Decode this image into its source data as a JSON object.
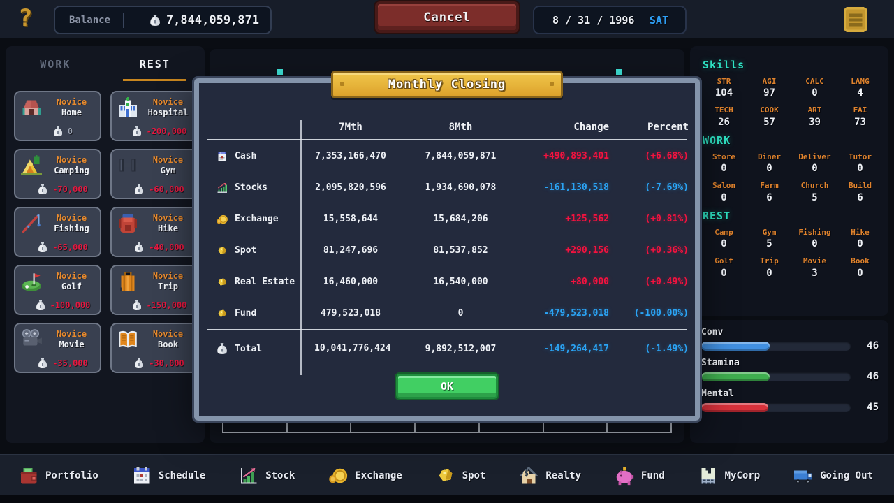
{
  "colors": {
    "gain_red": "#f5123f",
    "loss_blue": "#2ba4f5",
    "gold_accent": "#d9a73a",
    "cyan_heading": "#2fe3c4",
    "orange_label": "#e0832d",
    "price_red": "#e8173f",
    "weekday_blue": "#2f9ff5"
  },
  "top_bar": {
    "help_icon": "question-mark",
    "balance_label": "Balance",
    "balance_value": "7,844,059,871",
    "cancel_label": "Cancel",
    "date": "8 / 31 / 1996",
    "weekday": "SAT",
    "menu_icon": "menu"
  },
  "left_panel": {
    "tabs": [
      {
        "label": "WORK",
        "active": false
      },
      {
        "label": "REST",
        "active": true
      }
    ],
    "cards": [
      {
        "tier": "Novice",
        "name": "Home",
        "price": "0",
        "icon": "home",
        "muted": true
      },
      {
        "tier": "Novice",
        "name": "Hospital",
        "price": "-200,000",
        "icon": "hospital"
      },
      {
        "tier": "Novice",
        "name": "Camping",
        "price": "-70,000",
        "icon": "camping"
      },
      {
        "tier": "Novice",
        "name": "Gym",
        "price": "-60,000",
        "icon": "gym"
      },
      {
        "tier": "Novice",
        "name": "Fishing",
        "price": "-65,000",
        "icon": "fishing"
      },
      {
        "tier": "Novice",
        "name": "Hike",
        "price": "-40,000",
        "icon": "hike"
      },
      {
        "tier": "Novice",
        "name": "Golf",
        "price": "-100,000",
        "icon": "golf"
      },
      {
        "tier": "Novice",
        "name": "Trip",
        "price": "-150,000",
        "icon": "trip"
      },
      {
        "tier": "Novice",
        "name": "Movie",
        "price": "-35,000",
        "icon": "movie"
      },
      {
        "tier": "Novice",
        "name": "Book",
        "price": "-30,000",
        "icon": "book"
      }
    ]
  },
  "modal": {
    "title": "Monthly Closing",
    "columns": [
      "7Mth",
      "8Mth",
      "Change",
      "Percent"
    ],
    "rows": [
      {
        "icon": "cash",
        "label": "Cash",
        "m7": "7,353,166,470",
        "m8": "7,844,059,871",
        "change": "+490,893,401",
        "percent": "(+6.68%)",
        "dir": "up"
      },
      {
        "icon": "stocks",
        "label": "Stocks",
        "m7": "2,095,820,596",
        "m8": "1,934,690,078",
        "change": "-161,130,518",
        "percent": "(-7.69%)",
        "dir": "down"
      },
      {
        "icon": "coin",
        "label": "Exchange",
        "m7": "15,558,644",
        "m8": "15,684,206",
        "change": "+125,562",
        "percent": "(+0.81%)",
        "dir": "up"
      },
      {
        "icon": "nugget",
        "label": "Spot",
        "m7": "81,247,696",
        "m8": "81,537,852",
        "change": "+290,156",
        "percent": "(+0.36%)",
        "dir": "up"
      },
      {
        "icon": "nugget",
        "label": "Real Estate",
        "m7": "16,460,000",
        "m8": "16,540,000",
        "change": "+80,000",
        "percent": "(+0.49%)",
        "dir": "up"
      },
      {
        "icon": "nugget",
        "label": "Fund",
        "m7": "479,523,018",
        "m8": "0",
        "change": "-479,523,018",
        "percent": "(-100.00%)",
        "dir": "down"
      }
    ],
    "total": {
      "icon": "moneybag",
      "label": "Total",
      "m7": "10,041,776,424",
      "m8": "9,892,512,007",
      "change": "-149,264,417",
      "percent": "(-1.49%)",
      "dir": "down"
    },
    "ok_label": "OK"
  },
  "right_panel": {
    "skills_title": "Skills",
    "skills": [
      {
        "label": "STR",
        "value": "104"
      },
      {
        "label": "AGI",
        "value": "97"
      },
      {
        "label": "CALC",
        "value": "0"
      },
      {
        "label": "LANG",
        "value": "4"
      },
      {
        "label": "TECH",
        "value": "26"
      },
      {
        "label": "COOK",
        "value": "57"
      },
      {
        "label": "ART",
        "value": "39"
      },
      {
        "label": "FAI",
        "value": "73"
      }
    ],
    "work_title": "WORK",
    "work": [
      {
        "label": "Store",
        "value": "0"
      },
      {
        "label": "Diner",
        "value": "0"
      },
      {
        "label": "Deliver",
        "value": "0"
      },
      {
        "label": "Tutor",
        "value": "0"
      },
      {
        "label": "Salon",
        "value": "0"
      },
      {
        "label": "Farm",
        "value": "6"
      },
      {
        "label": "Church",
        "value": "5"
      },
      {
        "label": "Build",
        "value": "6"
      }
    ],
    "rest_title": "REST",
    "rest": [
      {
        "label": "Camp",
        "value": "0"
      },
      {
        "label": "Gym",
        "value": "5"
      },
      {
        "label": "Fishing",
        "value": "0"
      },
      {
        "label": "Hike",
        "value": "0"
      },
      {
        "label": "Golf",
        "value": "0"
      },
      {
        "label": "Trip",
        "value": "0"
      },
      {
        "label": "Movie",
        "value": "3"
      },
      {
        "label": "Book",
        "value": "0"
      }
    ],
    "bars": [
      {
        "label": "Conv",
        "value": "46",
        "pct": 46,
        "color": "#418fe0"
      },
      {
        "label": "Stamina",
        "value": "46",
        "pct": 46,
        "color": "#3fae4f"
      },
      {
        "label": "Mental",
        "value": "45",
        "pct": 45,
        "color": "#d8313b"
      }
    ]
  },
  "bottom_bar": {
    "items": [
      {
        "label": "Portfolio",
        "icon": "portfolio"
      },
      {
        "label": "Schedule",
        "icon": "schedule"
      },
      {
        "label": "Stock",
        "icon": "stockchart"
      },
      {
        "label": "Exchange",
        "icon": "coin"
      },
      {
        "label": "Spot",
        "icon": "nugget"
      },
      {
        "label": "Realty",
        "icon": "realty"
      },
      {
        "label": "Fund",
        "icon": "piggy"
      },
      {
        "label": "MyCorp",
        "icon": "corp"
      },
      {
        "label": "Going Out",
        "icon": "truck"
      }
    ]
  }
}
